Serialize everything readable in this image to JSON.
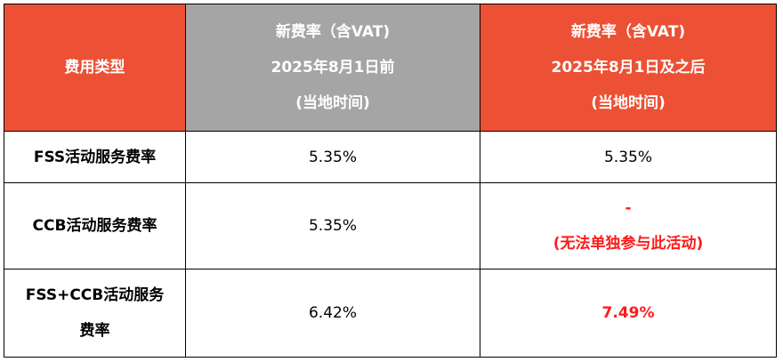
{
  "colors": {
    "header_accent": "#ec5135",
    "header_gray": "#a5a5a5",
    "highlight_red": "#ff1a1a",
    "border": "#000000"
  },
  "header": {
    "col1": "费用类型",
    "col2_lines": [
      "新费率（含VAT)",
      "2025年8月1日前",
      "(当地时间)"
    ],
    "col3_lines": [
      "新费率（含VAT)",
      "2025年8月1日及之后",
      "(当地时间)"
    ]
  },
  "rows": [
    {
      "label_lines": [
        "FSS活动服务费率"
      ],
      "before": "5.35%",
      "after_lines": [
        "5.35%"
      ]
    },
    {
      "label_lines": [
        "CCB活动服务费率"
      ],
      "before": "5.35%",
      "after_lines": [
        "-",
        "(无法单独参与此活动)"
      ]
    },
    {
      "label_lines": [
        "FSS+CCB活动服务",
        "费率"
      ],
      "before": "6.42%",
      "after_lines": [
        "7.49%"
      ]
    }
  ]
}
